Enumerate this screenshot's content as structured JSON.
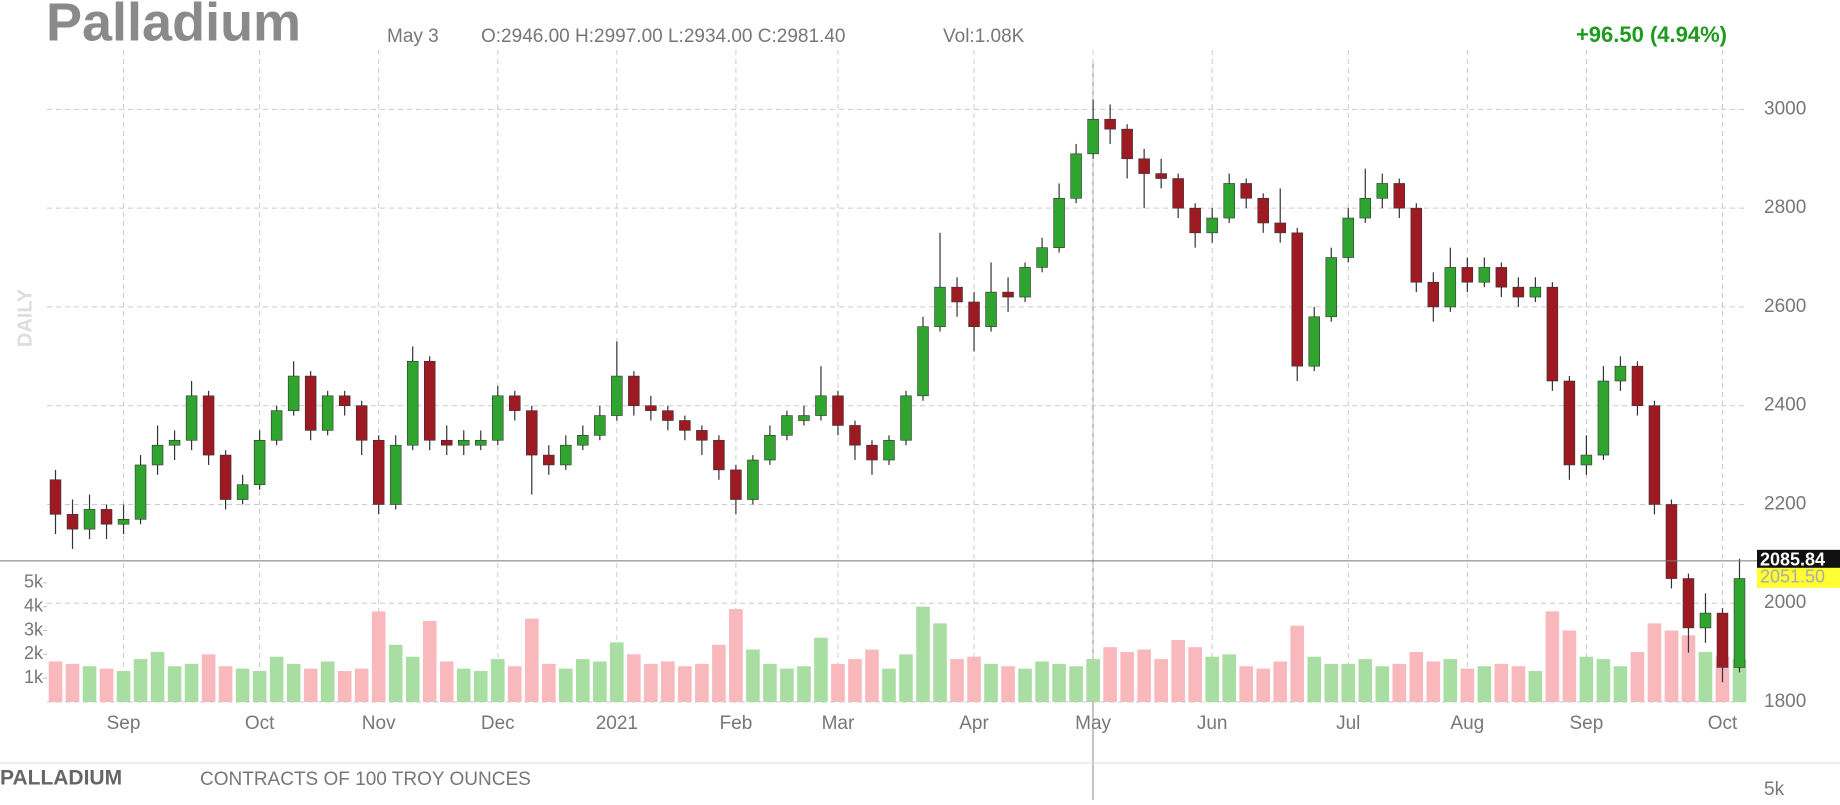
{
  "header": {
    "title": "Palladium",
    "date": "May 3",
    "ohlc": "O:2946.00 H:2997.00 L:2934.00 C:2981.40",
    "volume": "Vol:1.08K",
    "change": "+96.50 (4.94%)"
  },
  "side_label": "DAILY",
  "footer": {
    "symbol": "PALLADIUM",
    "contract": "CONTRACTS OF 100 TROY OUNCES",
    "next_panel_tick": "5k"
  },
  "chart_data": {
    "type": "candlestick",
    "categories": [
      null,
      null,
      null,
      null,
      "Sep",
      null,
      null,
      null,
      null,
      null,
      null,
      null,
      "Oct",
      null,
      null,
      null,
      null,
      null,
      null,
      "Nov",
      null,
      null,
      null,
      null,
      null,
      null,
      "Dec",
      null,
      null,
      null,
      null,
      null,
      null,
      "2021",
      null,
      null,
      null,
      null,
      null,
      null,
      "Feb",
      null,
      null,
      null,
      null,
      null,
      "Mar",
      null,
      null,
      null,
      null,
      null,
      null,
      null,
      "Apr",
      null,
      null,
      null,
      null,
      null,
      null,
      "May",
      null,
      null,
      null,
      null,
      null,
      null,
      "Jun",
      null,
      null,
      null,
      null,
      null,
      null,
      null,
      "Jul",
      null,
      null,
      null,
      null,
      null,
      null,
      "Aug",
      null,
      null,
      null,
      null,
      null,
      null,
      "Sep",
      null,
      null,
      null,
      null,
      null,
      null,
      null,
      "Oct",
      null
    ],
    "open": [
      2250,
      2180,
      2150,
      2190,
      2160,
      2170,
      2280,
      2320,
      2330,
      2420,
      2300,
      2210,
      2240,
      2330,
      2390,
      2460,
      2350,
      2420,
      2400,
      2330,
      2200,
      2320,
      2490,
      2330,
      2320,
      2320,
      2330,
      2420,
      2390,
      2300,
      2280,
      2320,
      2340,
      2380,
      2460,
      2400,
      2390,
      2370,
      2350,
      2330,
      2270,
      2210,
      2290,
      2340,
      2370,
      2380,
      2420,
      2360,
      2320,
      2290,
      2330,
      2420,
      2560,
      2640,
      2610,
      2560,
      2630,
      2620,
      2680,
      2720,
      2820,
      2910,
      2980,
      2960,
      2900,
      2870,
      2860,
      2800,
      2750,
      2780,
      2850,
      2820,
      2770,
      2750,
      2480,
      2580,
      2700,
      2780,
      2820,
      2850,
      2800,
      2650,
      2600,
      2680,
      2650,
      2680,
      2640,
      2620,
      2640,
      2450,
      2280,
      2300,
      2450,
      2480,
      2400,
      2200,
      2050,
      1950,
      1980,
      1870
    ],
    "high": [
      2270,
      2210,
      2220,
      2200,
      2200,
      2300,
      2360,
      2350,
      2450,
      2430,
      2310,
      2260,
      2350,
      2400,
      2490,
      2470,
      2430,
      2430,
      2410,
      2340,
      2340,
      2520,
      2500,
      2360,
      2350,
      2350,
      2440,
      2430,
      2400,
      2320,
      2340,
      2360,
      2400,
      2530,
      2470,
      2420,
      2400,
      2380,
      2360,
      2340,
      2280,
      2300,
      2360,
      2390,
      2400,
      2480,
      2430,
      2370,
      2330,
      2340,
      2430,
      2580,
      2750,
      2660,
      2630,
      2690,
      2660,
      2690,
      2740,
      2850,
      2930,
      3020,
      3010,
      2970,
      2920,
      2900,
      2870,
      2810,
      2800,
      2870,
      2860,
      2830,
      2840,
      2760,
      2600,
      2720,
      2800,
      2880,
      2870,
      2860,
      2810,
      2670,
      2720,
      2700,
      2700,
      2690,
      2660,
      2660,
      2650,
      2460,
      2340,
      2480,
      2500,
      2490,
      2410,
      2210,
      2060,
      2020,
      1990,
      2090
    ],
    "low": [
      2140,
      2110,
      2130,
      2130,
      2140,
      2160,
      2260,
      2290,
      2310,
      2280,
      2190,
      2200,
      2230,
      2320,
      2380,
      2330,
      2340,
      2380,
      2300,
      2180,
      2190,
      2310,
      2310,
      2300,
      2300,
      2310,
      2320,
      2370,
      2220,
      2260,
      2270,
      2310,
      2330,
      2370,
      2380,
      2370,
      2350,
      2330,
      2300,
      2250,
      2180,
      2200,
      2280,
      2330,
      2360,
      2370,
      2340,
      2290,
      2260,
      2280,
      2320,
      2410,
      2550,
      2580,
      2510,
      2550,
      2590,
      2610,
      2670,
      2710,
      2810,
      2900,
      2930,
      2860,
      2800,
      2840,
      2780,
      2720,
      2730,
      2770,
      2800,
      2750,
      2730,
      2450,
      2470,
      2570,
      2690,
      2770,
      2800,
      2780,
      2630,
      2570,
      2590,
      2630,
      2640,
      2620,
      2600,
      2610,
      2430,
      2250,
      2260,
      2290,
      2430,
      2380,
      2180,
      2030,
      1900,
      1920,
      1840,
      1860
    ],
    "close": [
      2180,
      2150,
      2190,
      2160,
      2170,
      2280,
      2320,
      2330,
      2420,
      2300,
      2210,
      2240,
      2330,
      2390,
      2460,
      2350,
      2420,
      2400,
      2330,
      2200,
      2320,
      2490,
      2330,
      2320,
      2330,
      2330,
      2420,
      2390,
      2300,
      2280,
      2320,
      2340,
      2380,
      2460,
      2400,
      2390,
      2370,
      2350,
      2330,
      2270,
      2210,
      2290,
      2340,
      2380,
      2380,
      2420,
      2360,
      2320,
      2290,
      2330,
      2420,
      2560,
      2640,
      2610,
      2560,
      2630,
      2620,
      2680,
      2720,
      2820,
      2910,
      2980,
      2960,
      2900,
      2870,
      2860,
      2800,
      2750,
      2780,
      2850,
      2820,
      2770,
      2750,
      2480,
      2580,
      2700,
      2780,
      2820,
      2850,
      2800,
      2650,
      2600,
      2680,
      2650,
      2680,
      2640,
      2620,
      2640,
      2450,
      2280,
      2300,
      2450,
      2480,
      2400,
      2200,
      2050,
      1950,
      1980,
      1870,
      2050
    ],
    "volume": [
      1700,
      1600,
      1500,
      1400,
      1300,
      1800,
      2100,
      1500,
      1600,
      2000,
      1500,
      1400,
      1300,
      1900,
      1600,
      1400,
      1700,
      1300,
      1400,
      3800,
      2400,
      1900,
      3400,
      1700,
      1400,
      1300,
      1800,
      1500,
      3500,
      1600,
      1400,
      1800,
      1700,
      2500,
      2000,
      1600,
      1700,
      1500,
      1600,
      2400,
      3900,
      2200,
      1600,
      1400,
      1500,
      2700,
      1600,
      1800,
      2200,
      1400,
      2000,
      4000,
      3300,
      1800,
      1900,
      1600,
      1500,
      1400,
      1700,
      1600,
      1500,
      1800,
      2300,
      2100,
      2200,
      1800,
      2600,
      2300,
      1900,
      2000,
      1500,
      1400,
      1700,
      3200,
      1900,
      1600,
      1600,
      1800,
      1500,
      1600,
      2100,
      1700,
      1800,
      1400,
      1500,
      1600,
      1500,
      1300,
      3800,
      3000,
      1900,
      1800,
      1500,
      2100,
      3300,
      3000,
      2800,
      2100,
      1900,
      1800
    ],
    "up_color": "#2fa52f",
    "down_color": "#9e1a22",
    "volume_up_color": "#a9dea2",
    "volume_down_color": "#f8b8bc",
    "ylim": [
      1800,
      3100
    ],
    "yticks": [
      1800,
      2000,
      2200,
      2400,
      2600,
      2800,
      3000
    ],
    "volume_ylim": [
      0,
      6000
    ],
    "volume_yticks": [
      {
        "value": 1000,
        "label": "1k"
      },
      {
        "value": 2000,
        "label": "2k"
      },
      {
        "value": 3000,
        "label": "3k"
      },
      {
        "value": 4000,
        "label": "4k"
      },
      {
        "value": 5000,
        "label": "5k"
      }
    ],
    "last_price": 2085.84,
    "settle_price": {
      "value": 2051.5,
      "label": "2051.50"
    },
    "grid": true
  }
}
